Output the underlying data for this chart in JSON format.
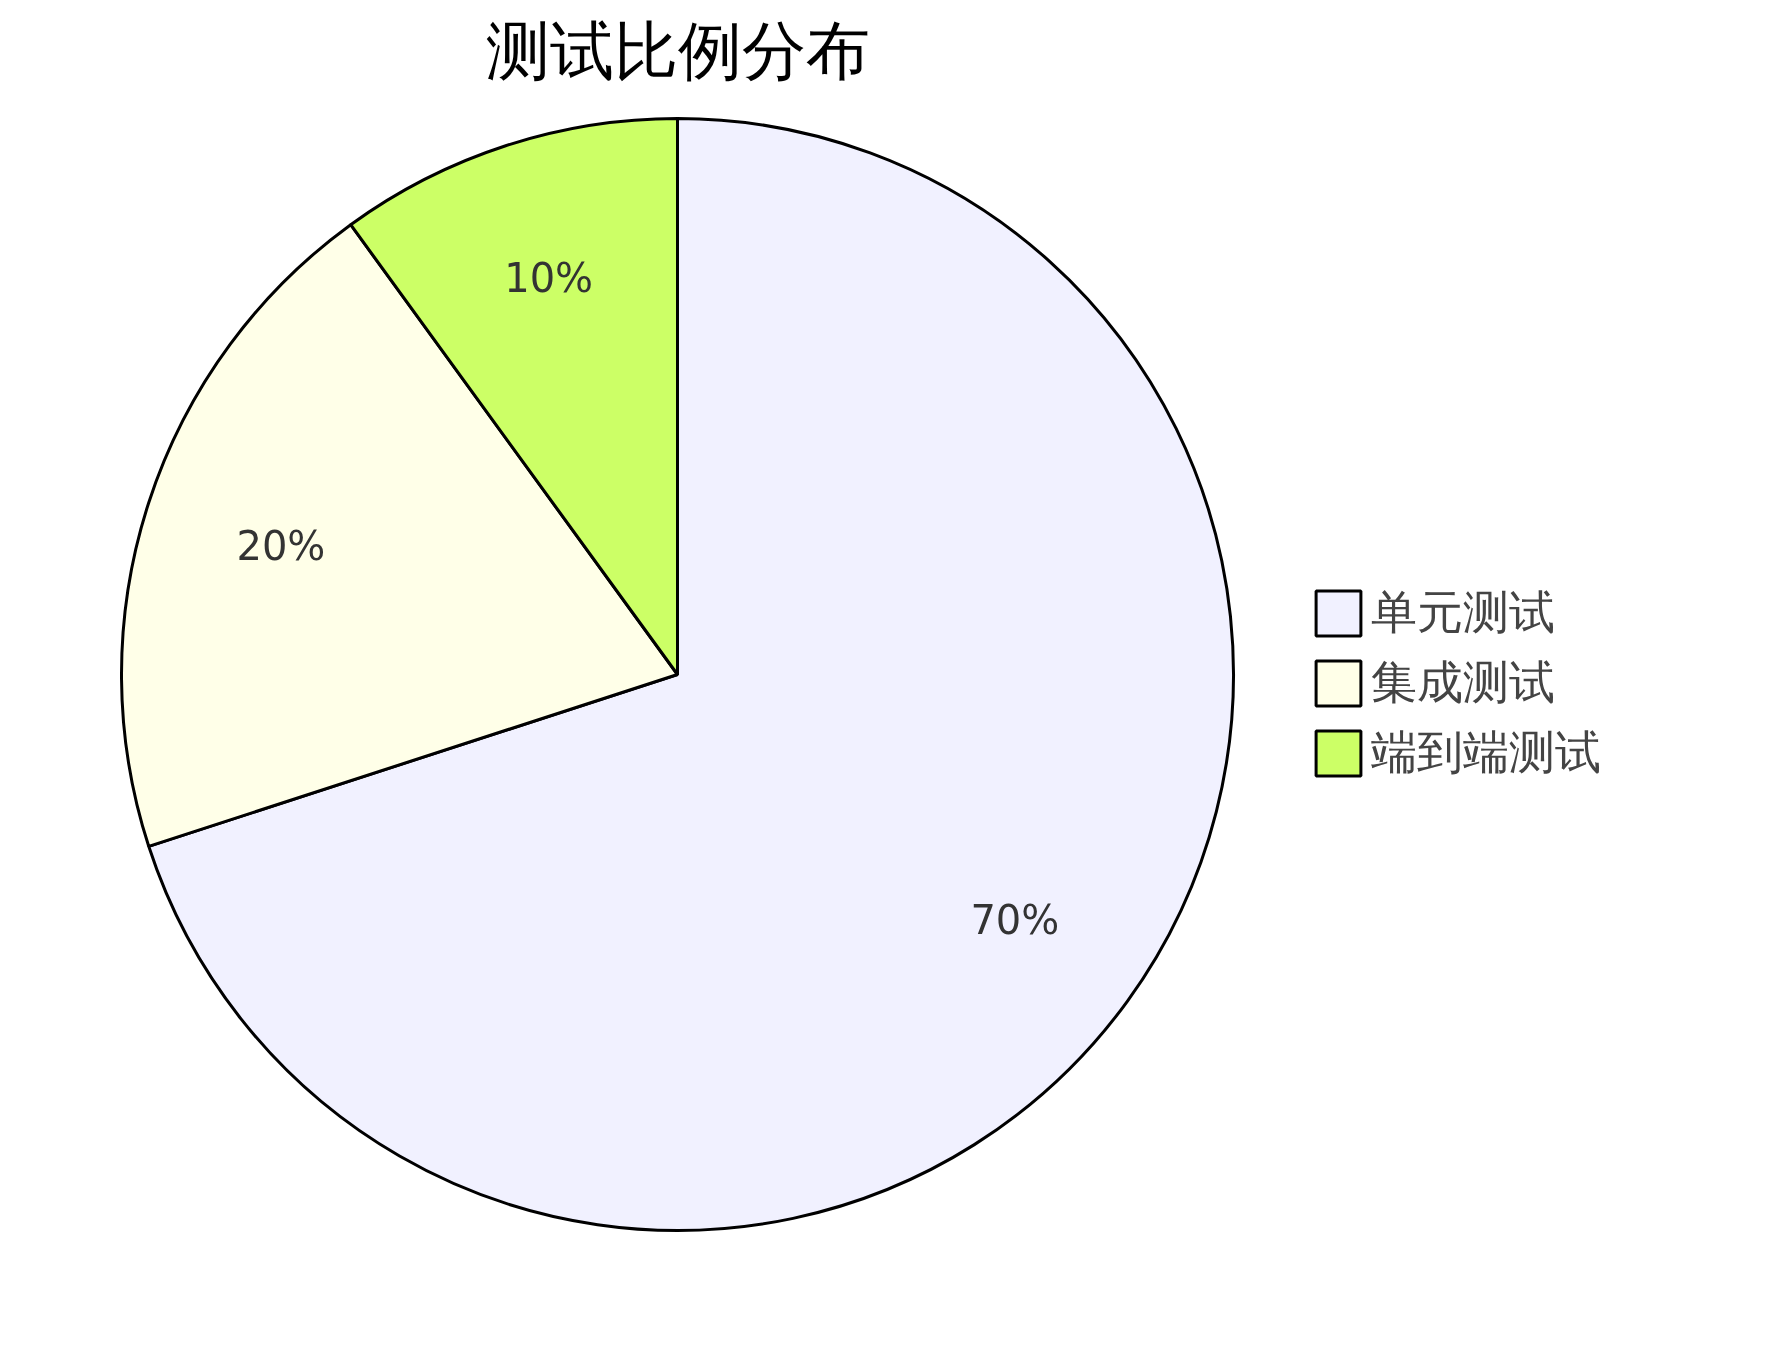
{
  "chart_data": {
    "type": "pie",
    "title": "测试比例分布",
    "categories": [
      "单元测试",
      "集成测试",
      "端到端测试"
    ],
    "values": [
      70,
      20,
      10
    ],
    "value_labels": [
      "70%",
      "20%",
      "10%"
    ],
    "colors": [
      "#f1f1ff",
      "#ffffe8",
      "#ccff66"
    ],
    "legend": "right"
  }
}
